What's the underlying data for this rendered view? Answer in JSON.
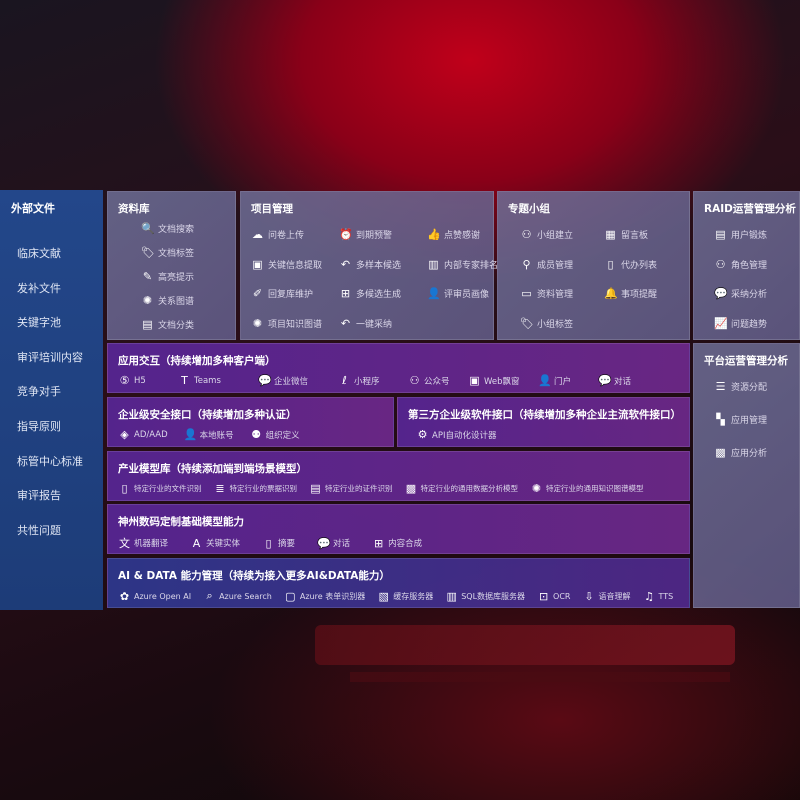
{
  "sidebar": {
    "title": "外部文件",
    "items": [
      "临床文献",
      "发补文件",
      "关键字池",
      "审评培训内容",
      "竞争对手",
      "指导原则",
      "标管中心标准",
      "审评报告",
      "共性问题"
    ]
  },
  "library": {
    "title": "资料库",
    "items": [
      {
        "icon": "doc-search",
        "label": "文档搜索"
      },
      {
        "icon": "tag",
        "label": "文档标签"
      },
      {
        "icon": "pen",
        "label": "高亮提示"
      },
      {
        "icon": "graph",
        "label": "关系图谱"
      },
      {
        "icon": "doc-class",
        "label": "文档分类"
      }
    ]
  },
  "project": {
    "title": "项目管理",
    "items": [
      {
        "icon": "cloud-upload",
        "label": "问卷上传"
      },
      {
        "icon": "alarm",
        "label": "到期预警"
      },
      {
        "icon": "thumbs-up",
        "label": "点赞感谢"
      },
      {
        "icon": "window",
        "label": "关键信息提取"
      },
      {
        "icon": "reply",
        "label": "多样本候选"
      },
      {
        "icon": "rank",
        "label": "内部专家排名"
      },
      {
        "icon": "edit",
        "label": "回复库维护"
      },
      {
        "icon": "puzzle",
        "label": "多候选生成"
      },
      {
        "icon": "user",
        "label": "评审员画像"
      },
      {
        "icon": "graph",
        "label": "项目知识图谱"
      },
      {
        "icon": "reply",
        "label": "一键采纳"
      }
    ]
  },
  "group": {
    "title": "专题小组",
    "items": [
      {
        "icon": "users",
        "label": "小组建立"
      },
      {
        "icon": "bbs",
        "label": "留言板"
      },
      {
        "icon": "user-add",
        "label": "成员管理"
      },
      {
        "icon": "clipboard",
        "label": "代办列表"
      },
      {
        "icon": "folder",
        "label": "资料管理"
      },
      {
        "icon": "bell",
        "label": "事项提醒"
      },
      {
        "icon": "tag",
        "label": "小组标签"
      }
    ]
  },
  "raid": {
    "title": "RAID运营管理分析",
    "items": [
      {
        "icon": "id-card",
        "label": "用户锻炼"
      },
      {
        "icon": "users",
        "label": "角色管理"
      },
      {
        "icon": "qa",
        "label": "采纳分析"
      },
      {
        "icon": "trend",
        "label": "问题趋势"
      }
    ]
  },
  "platform": {
    "title": "平台运营管理分析",
    "items": [
      {
        "icon": "list",
        "label": "资源分配"
      },
      {
        "icon": "apps",
        "label": "应用管理"
      },
      {
        "icon": "chart",
        "label": "应用分析"
      }
    ]
  },
  "interaction": {
    "title": "应用交互（持续增加多种客户端）",
    "items": [
      {
        "icon": "html5",
        "label": "H5"
      },
      {
        "icon": "teams",
        "label": "Teams"
      },
      {
        "icon": "wechat",
        "label": "企业微信"
      },
      {
        "icon": "mini-program",
        "label": "小程序"
      },
      {
        "icon": "users",
        "label": "公众号"
      },
      {
        "icon": "window",
        "label": "Web飘窗"
      },
      {
        "icon": "portal",
        "label": "门户"
      },
      {
        "icon": "chat",
        "label": "对话"
      }
    ]
  },
  "security": {
    "title": "企业级安全接口（持续增加多种认证）",
    "items": [
      {
        "icon": "diamond",
        "label": "AD/AAD"
      },
      {
        "icon": "user",
        "label": "本地账号"
      },
      {
        "icon": "org",
        "label": "组织定义"
      }
    ]
  },
  "third": {
    "title": "第三方企业级软件接口（持续增加多种企业主流软件接口）",
    "items": [
      {
        "icon": "gear",
        "label": "API自动化设计器"
      }
    ]
  },
  "industry": {
    "title": "产业模型库（持续添加端到端场景模型）",
    "items": [
      {
        "icon": "doc",
        "label": "特定行业的文件识别"
      },
      {
        "icon": "receipt",
        "label": "特定行业的票据识别"
      },
      {
        "icon": "id-card",
        "label": "特定行业的证件识别"
      },
      {
        "icon": "chart",
        "label": "特定行业的通用数据分析模型"
      },
      {
        "icon": "graph",
        "label": "特定行业的通用知识图谱模型"
      }
    ]
  },
  "base": {
    "title": "神州数码定制基础模型能力",
    "items": [
      {
        "icon": "translate",
        "label": "机器翻译"
      },
      {
        "icon": "entity",
        "label": "关键实体"
      },
      {
        "icon": "doc",
        "label": "摘要"
      },
      {
        "icon": "chat",
        "label": "对话"
      },
      {
        "icon": "puzzle",
        "label": "内容合成"
      }
    ]
  },
  "ai": {
    "title": "AI & DATA 能力管理（持续为接入更多AI&DATA能力）",
    "items": [
      {
        "icon": "openai",
        "label": "Azure Open AI"
      },
      {
        "icon": "search",
        "label": "Azure Search"
      },
      {
        "icon": "form",
        "label": "Azure 表单识别器"
      },
      {
        "icon": "cache",
        "label": "缓存服务器"
      },
      {
        "icon": "database",
        "label": "SQL数据库服务器"
      },
      {
        "icon": "ocr",
        "label": "OCR"
      },
      {
        "icon": "speech",
        "label": "语音理解"
      },
      {
        "icon": "tts",
        "label": "TTS"
      }
    ]
  }
}
